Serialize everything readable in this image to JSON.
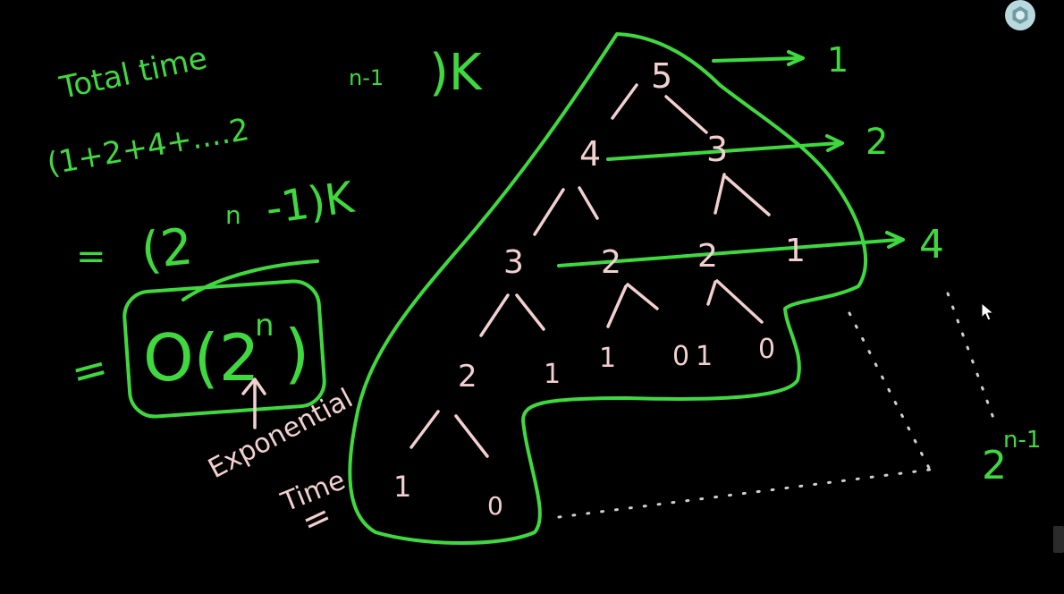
{
  "whiteboard": {
    "total_time_label": "Total time",
    "sum_series": "(1+2+4+....2",
    "sum_exp": "n-1",
    "sum_close": ")K",
    "closed_form_eq": "=",
    "closed_form": "(2",
    "closed_form_exp": "n",
    "closed_form_tail": "-1)K",
    "big_o_eq": "=",
    "big_o": "O(2",
    "big_o_exp": "n",
    "big_o_close": ")",
    "annotation_word1": "Exponential",
    "annotation_word2": "Time",
    "annotation_eq": "=",
    "tree": {
      "root": "5",
      "level1": [
        "4",
        "3"
      ],
      "level2": [
        "3",
        "2",
        "2",
        "1"
      ],
      "level3": [
        "2",
        "1",
        "1",
        "0",
        "1",
        "0"
      ],
      "level4": [
        "1",
        "0"
      ]
    },
    "level_counts": [
      "1",
      "2",
      "4"
    ],
    "last_level_base": "2",
    "last_level_exp": "n-1"
  },
  "icons": {
    "settings": "settings-gear-icon",
    "cursor": "mouse-pointer-icon"
  },
  "colors": {
    "background": "#000000",
    "ink_green": "#3fd93f",
    "ink_pink": "#f3d0d0",
    "dots": "#cfcfcf"
  }
}
